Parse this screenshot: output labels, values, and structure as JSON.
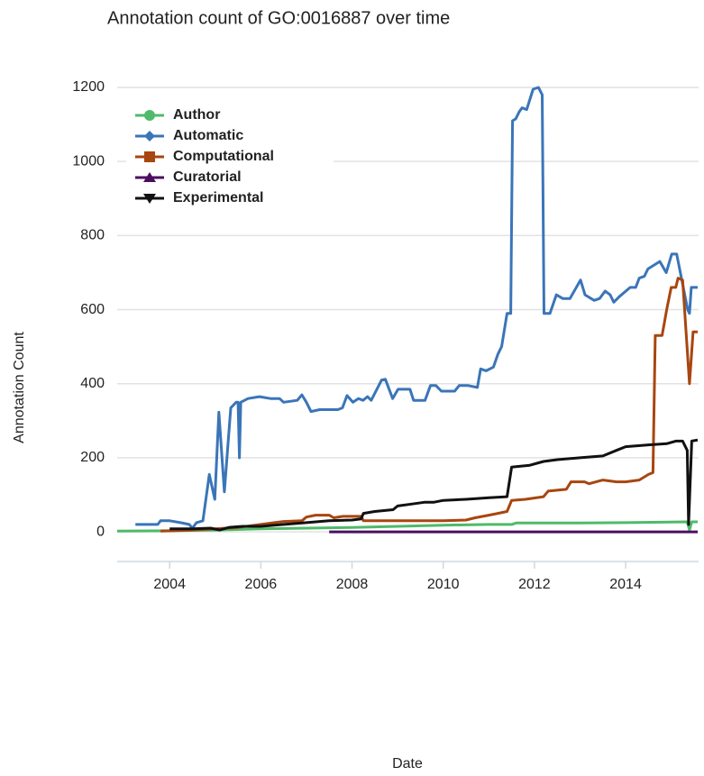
{
  "chart_data": {
    "type": "line",
    "title": "Annotation count of GO:0016887 over time",
    "x_label": "Date",
    "y_label": "Annotation Count",
    "xlim": [
      2002.85,
      2015.6
    ],
    "xticks": [
      2004,
      2006,
      2008,
      2010,
      2012,
      2014
    ],
    "ylim": [
      -80,
      1290
    ],
    "yticks": [
      0,
      200,
      400,
      600,
      800,
      1000,
      1200
    ],
    "grid": true,
    "legend": "upper left",
    "series": [
      {
        "name": "Author",
        "color": "#4fba68",
        "x": [
          2002.85,
          2004,
          2005,
          2006,
          2007,
          2008,
          2009,
          2010,
          2011,
          2011.5,
          2011.6,
          2013,
          2014,
          2015.35,
          2015.4,
          2015.45,
          2015.58
        ],
        "values": [
          2,
          3,
          5,
          8,
          10,
          12,
          15,
          18,
          20,
          20,
          24,
          24,
          25,
          27,
          5,
          27,
          27
        ]
      },
      {
        "name": "Automatic",
        "color": "#3a75b8",
        "x": [
          2003.25,
          2003.74,
          2003.8,
          2004.0,
          2004.24,
          2004.43,
          2004.5,
          2004.59,
          2004.73,
          2004.87,
          2004.99,
          2005.08,
          2005.2,
          2005.34,
          2005.46,
          2005.5,
          2005.53,
          2005.56,
          2005.72,
          2005.97,
          2006.21,
          2006.41,
          2006.5,
          2006.8,
          2006.9,
          2007.0,
          2007.1,
          2007.29,
          2007.69,
          2007.79,
          2007.89,
          2008.02,
          2008.14,
          2008.24,
          2008.34,
          2008.42,
          2008.65,
          2008.73,
          2008.89,
          2009.01,
          2009.27,
          2009.35,
          2009.6,
          2009.72,
          2009.84,
          2009.96,
          2010.25,
          2010.35,
          2010.55,
          2010.75,
          2010.82,
          2010.94,
          2011.1,
          2011.2,
          2011.28,
          2011.4,
          2011.48,
          2011.52,
          2011.59,
          2011.67,
          2011.73,
          2011.83,
          2011.97,
          2012.09,
          2012.17,
          2012.21,
          2012.34,
          2012.48,
          2012.62,
          2012.78,
          2013.01,
          2013.11,
          2013.31,
          2013.43,
          2013.55,
          2013.66,
          2013.74,
          2013.86,
          2014.1,
          2014.22,
          2014.3,
          2014.41,
          2014.49,
          2014.75,
          2014.89,
          2015.01,
          2015.12,
          2015.36,
          2015.4,
          2015.44,
          2015.58
        ],
        "values": [
          20,
          20,
          30,
          30,
          25,
          20,
          10,
          25,
          30,
          155,
          88,
          323,
          108,
          335,
          350,
          350,
          200,
          350,
          360,
          365,
          360,
          360,
          350,
          355,
          370,
          350,
          325,
          330,
          330,
          335,
          368,
          350,
          360,
          355,
          365,
          355,
          410,
          412,
          360,
          385,
          385,
          355,
          355,
          395,
          395,
          380,
          380,
          395,
          395,
          390,
          440,
          435,
          445,
          480,
          500,
          590,
          590,
          1110,
          1115,
          1135,
          1145,
          1140,
          1195,
          1200,
          1180,
          590,
          590,
          640,
          630,
          630,
          680,
          640,
          625,
          630,
          650,
          640,
          620,
          635,
          660,
          660,
          685,
          690,
          710,
          730,
          700,
          750,
          750,
          600,
          590,
          660,
          660
        ]
      },
      {
        "name": "Computational",
        "color": "#a8460f",
        "x": [
          2003.8,
          2004.5,
          2005.0,
          2005.5,
          2006.0,
          2006.3,
          2006.5,
          2006.9,
          2007.0,
          2007.2,
          2007.5,
          2007.6,
          2007.8,
          2008.2,
          2008.25,
          2009.0,
          2009.5,
          2010.0,
          2010.5,
          2010.7,
          2011.0,
          2011.2,
          2011.4,
          2011.5,
          2011.8,
          2012.2,
          2012.3,
          2012.7,
          2012.8,
          2013.1,
          2013.2,
          2013.5,
          2013.8,
          2014.0,
          2014.3,
          2014.5,
          2014.6,
          2014.65,
          2014.8,
          2014.9,
          2015.0,
          2015.1,
          2015.15,
          2015.25,
          2015.4,
          2015.48,
          2015.58
        ],
        "values": [
          2,
          5,
          8,
          12,
          20,
          25,
          28,
          30,
          40,
          45,
          45,
          38,
          42,
          42,
          30,
          30,
          30,
          30,
          32,
          38,
          45,
          50,
          55,
          85,
          88,
          95,
          110,
          115,
          135,
          135,
          130,
          140,
          135,
          135,
          140,
          155,
          160,
          530,
          530,
          600,
          660,
          660,
          685,
          680,
          400,
          540,
          540
        ]
      },
      {
        "name": "Curatorial",
        "color": "#4b0f5f",
        "x": [
          2007.5,
          2015.58
        ],
        "values": [
          0,
          0
        ]
      },
      {
        "name": "Experimental",
        "color": "#111111",
        "x": [
          2004.0,
          2004.5,
          2004.9,
          2005.1,
          2005.3,
          2005.6,
          2006.0,
          2006.5,
          2007.0,
          2007.5,
          2008.0,
          2008.2,
          2008.25,
          2008.5,
          2008.9,
          2009.0,
          2009.3,
          2009.6,
          2009.8,
          2010.0,
          2010.5,
          2011.0,
          2011.4,
          2011.5,
          2011.9,
          2012.2,
          2012.5,
          2013.0,
          2013.5,
          2013.8,
          2014.0,
          2014.5,
          2014.9,
          2015.1,
          2015.25,
          2015.35,
          2015.38,
          2015.45,
          2015.58
        ],
        "values": [
          8,
          8,
          10,
          5,
          12,
          15,
          15,
          20,
          25,
          30,
          32,
          35,
          50,
          55,
          60,
          70,
          75,
          80,
          80,
          85,
          88,
          92,
          95,
          175,
          180,
          190,
          195,
          200,
          205,
          220,
          230,
          235,
          238,
          245,
          245,
          220,
          20,
          245,
          248
        ]
      }
    ]
  }
}
